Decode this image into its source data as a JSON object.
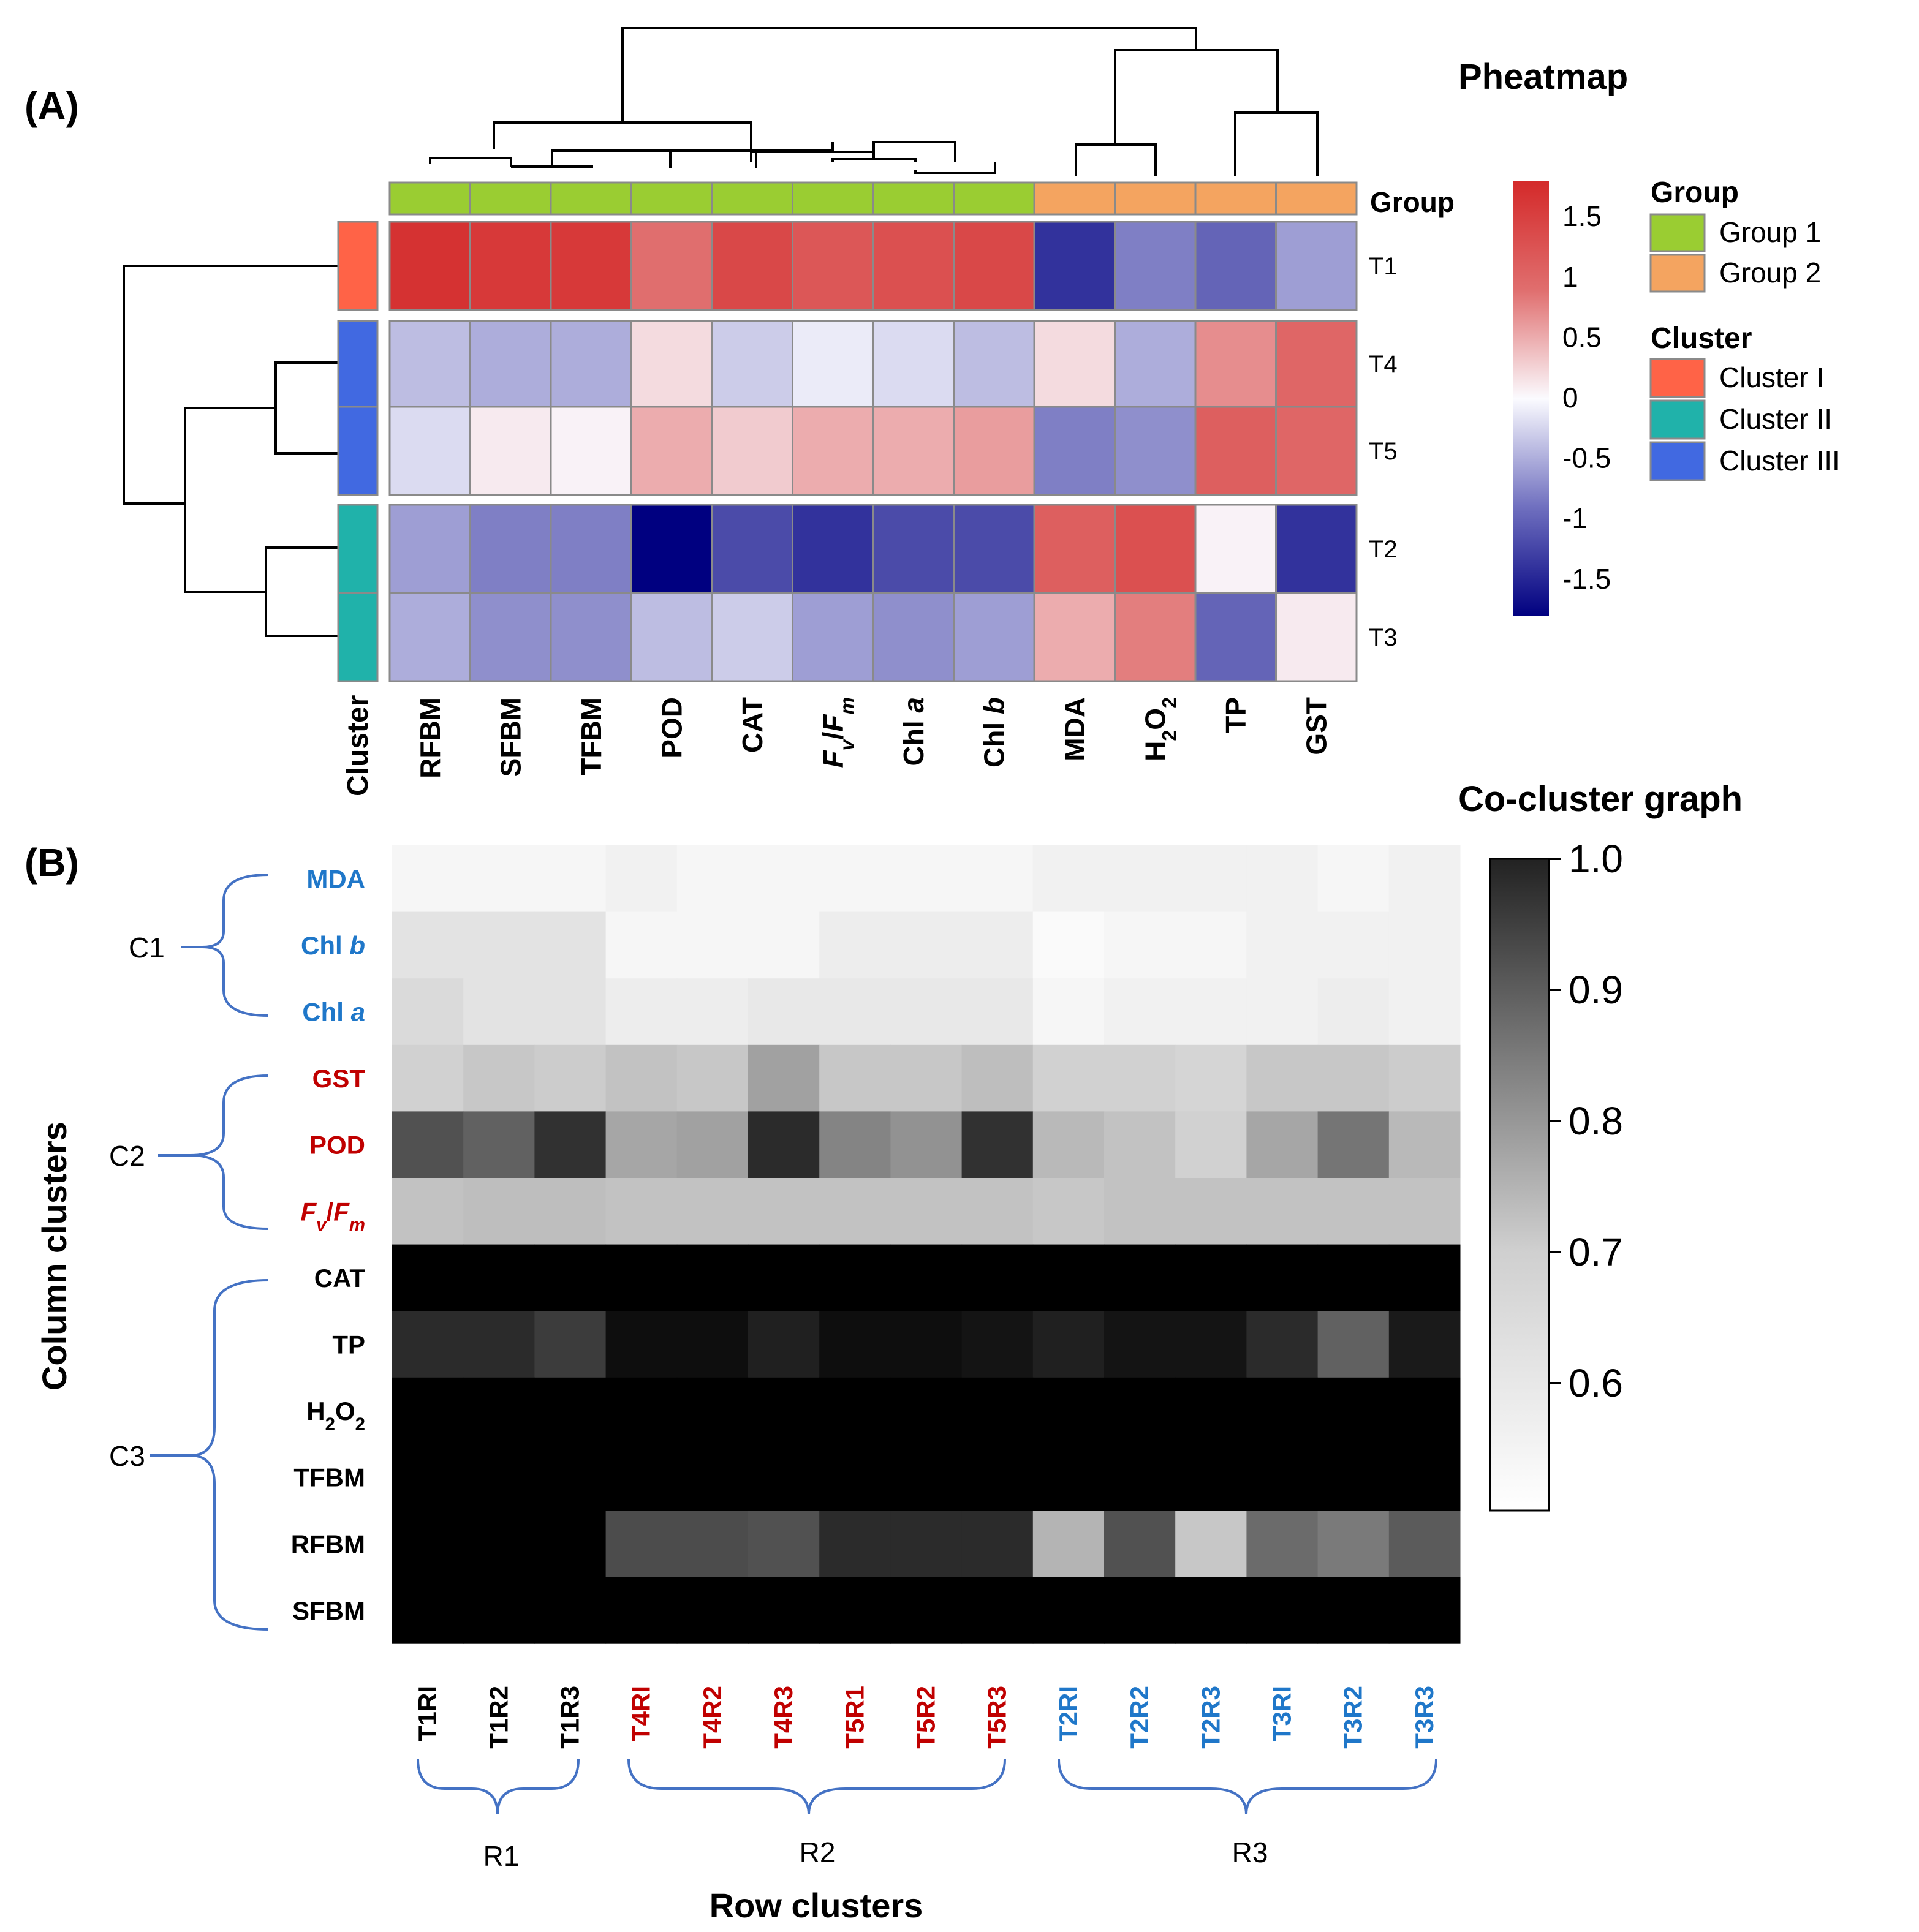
{
  "panel_a": {
    "label": "(A)",
    "title": "Pheatmap",
    "group_header": "Group",
    "cluster_axis_label": "Cluster",
    "legend": {
      "group_title": "Group",
      "group_items": [
        {
          "label": "Group 1",
          "color": "#9acd32"
        },
        {
          "label": "Group 2",
          "color": "#f4a460"
        }
      ],
      "cluster_title": "Cluster",
      "cluster_items": [
        {
          "label": "Cluster I",
          "color": "#ff6347"
        },
        {
          "label": "Cluster II",
          "color": "#20b2aa"
        },
        {
          "label": "Cluster III",
          "color": "#4169e1"
        }
      ]
    },
    "colorbar_ticks": [
      "1.5",
      "1",
      "0.5",
      "0",
      "-0.5",
      "-1",
      "-1.5"
    ]
  },
  "panel_b": {
    "label": "(B)",
    "title": "Co-cluster graph",
    "column_clusters_label": "Column clusters",
    "row_clusters_label": "Row clusters",
    "colorbar_ticks": [
      "1.0",
      "0.9",
      "0.8",
      "0.7",
      "0.6"
    ],
    "column_cluster_labels": [
      "C1",
      "C2",
      "C3"
    ],
    "row_cluster_labels": [
      "R1",
      "R2",
      "R3"
    ]
  },
  "chart_data": [
    {
      "type": "heatmap",
      "title": "Pheatmap",
      "columns": [
        "RFBM",
        "SFBM",
        "TFBM",
        "POD",
        "CAT",
        "Fv/Fm",
        "Chl a",
        "Chl b",
        "MDA",
        "H2O2",
        "TP",
        "GST"
      ],
      "column_groups": [
        "Group 1",
        "Group 1",
        "Group 1",
        "Group 1",
        "Group 1",
        "Group 1",
        "Group 1",
        "Group 1",
        "Group 2",
        "Group 2",
        "Group 2",
        "Group 2"
      ],
      "rows": [
        "T1",
        "T4",
        "T5",
        "T2",
        "T3"
      ],
      "row_clusters": [
        "Cluster I",
        "Cluster III",
        "Cluster III",
        "Cluster II",
        "Cluster II"
      ],
      "values": [
        [
          1.7,
          1.6,
          1.6,
          0.9,
          1.4,
          1.2,
          1.3,
          1.4,
          -1.4,
          -0.8,
          -1.0,
          -0.6
        ],
        [
          -0.4,
          -0.5,
          -0.5,
          0.2,
          -0.3,
          -0.1,
          -0.2,
          -0.4,
          0.2,
          -0.5,
          0.7,
          1.0
        ],
        [
          -0.2,
          0.1,
          0.05,
          0.5,
          0.3,
          0.5,
          0.5,
          0.6,
          -0.8,
          -0.7,
          1.1,
          1.0
        ],
        [
          -0.6,
          -0.8,
          -0.8,
          -1.8,
          -1.2,
          -1.4,
          -1.2,
          -1.2,
          1.1,
          1.3,
          0.05,
          -1.4
        ],
        [
          -0.5,
          -0.7,
          -0.7,
          -0.4,
          -0.3,
          -0.6,
          -0.7,
          -0.6,
          0.5,
          0.8,
          -1.0,
          0.1
        ]
      ],
      "color_range": [
        -1.8,
        1.8
      ],
      "colorbar_ticks": [
        1.5,
        1,
        0.5,
        0,
        -0.5,
        -1,
        -1.5
      ]
    },
    {
      "type": "heatmap",
      "title": "Co-cluster graph",
      "rows": [
        "MDA",
        "Chl b",
        "Chl a",
        "GST",
        "POD",
        "Fv/Fm",
        "CAT",
        "TP",
        "H2O2",
        "TFBM",
        "RFBM",
        "SFBM"
      ],
      "row_colors": [
        "#1f77c9",
        "#1f77c9",
        "#1f77c9",
        "#c00000",
        "#c00000",
        "#c00000",
        "#000000",
        "#000000",
        "#000000",
        "#000000",
        "#000000",
        "#000000"
      ],
      "columns": [
        "T1RI",
        "T1R2",
        "T1R3",
        "T4RI",
        "T4R2",
        "T4R3",
        "T5R1",
        "T5R2",
        "T5R3",
        "T2RI",
        "T2R2",
        "T2R3",
        "T3RI",
        "T3R2",
        "T3R3"
      ],
      "column_colors": [
        "#000000",
        "#000000",
        "#000000",
        "#c00000",
        "#c00000",
        "#c00000",
        "#c00000",
        "#c00000",
        "#c00000",
        "#1f77c9",
        "#1f77c9",
        "#1f77c9",
        "#1f77c9",
        "#1f77c9",
        "#1f77c9"
      ],
      "values": [
        [
          0.52,
          0.52,
          0.52,
          0.53,
          0.52,
          0.52,
          0.52,
          0.52,
          0.52,
          0.53,
          0.53,
          0.53,
          0.53,
          0.52,
          0.53
        ],
        [
          0.56,
          0.56,
          0.56,
          0.52,
          0.52,
          0.52,
          0.54,
          0.54,
          0.54,
          0.51,
          0.52,
          0.52,
          0.53,
          0.53,
          0.53
        ],
        [
          0.58,
          0.56,
          0.56,
          0.54,
          0.54,
          0.55,
          0.55,
          0.55,
          0.55,
          0.52,
          0.53,
          0.53,
          0.53,
          0.54,
          0.53
        ],
        [
          0.6,
          0.62,
          0.61,
          0.63,
          0.62,
          0.7,
          0.62,
          0.62,
          0.64,
          0.6,
          0.6,
          0.59,
          0.62,
          0.62,
          0.61
        ],
        [
          0.86,
          0.83,
          0.92,
          0.69,
          0.7,
          0.93,
          0.76,
          0.73,
          0.92,
          0.65,
          0.63,
          0.6,
          0.69,
          0.79,
          0.65
        ],
        [
          0.63,
          0.64,
          0.64,
          0.63,
          0.63,
          0.63,
          0.63,
          0.63,
          0.63,
          0.62,
          0.63,
          0.63,
          0.63,
          0.63,
          0.63
        ],
        [
          1.0,
          1.0,
          1.0,
          1.0,
          1.0,
          1.0,
          1.0,
          1.0,
          1.0,
          1.0,
          1.0,
          1.0,
          1.0,
          1.0,
          1.0
        ],
        [
          0.93,
          0.93,
          0.9,
          0.98,
          0.98,
          0.95,
          0.98,
          0.98,
          0.97,
          0.95,
          0.97,
          0.97,
          0.93,
          0.83,
          0.96
        ],
        [
          1.0,
          1.0,
          1.0,
          1.0,
          1.0,
          1.0,
          1.0,
          1.0,
          1.0,
          1.0,
          1.0,
          1.0,
          1.0,
          1.0,
          1.0
        ],
        [
          1.0,
          1.0,
          1.0,
          1.0,
          1.0,
          1.0,
          1.0,
          1.0,
          1.0,
          1.0,
          1.0,
          1.0,
          1.0,
          1.0,
          1.0
        ],
        [
          1.0,
          1.0,
          1.0,
          0.87,
          0.87,
          0.86,
          0.93,
          0.93,
          0.93,
          0.66,
          0.86,
          0.62,
          0.81,
          0.78,
          0.84
        ],
        [
          1.0,
          1.0,
          1.0,
          1.0,
          1.0,
          1.0,
          1.0,
          1.0,
          1.0,
          1.0,
          1.0,
          1.0,
          1.0,
          1.0,
          1.0
        ]
      ],
      "color_range": [
        0.5,
        1.0
      ],
      "colorbar_ticks": [
        1.0,
        0.9,
        0.8,
        0.7,
        0.6
      ],
      "column_clusters": [
        {
          "label": "C1",
          "members": [
            "MDA",
            "Chl b",
            "Chl a"
          ]
        },
        {
          "label": "C2",
          "members": [
            "GST",
            "POD",
            "Fv/Fm"
          ]
        },
        {
          "label": "C3",
          "members": [
            "CAT",
            "TP",
            "H2O2",
            "TFBM",
            "RFBM",
            "SFBM"
          ]
        }
      ],
      "row_clusters": [
        {
          "label": "R1",
          "members": [
            "T1RI",
            "T1R2",
            "T1R3"
          ]
        },
        {
          "label": "R2",
          "members": [
            "T4RI",
            "T4R2",
            "T4R3",
            "T5R1",
            "T5R2",
            "T5R3"
          ]
        },
        {
          "label": "R3",
          "members": [
            "T2RI",
            "T2R2",
            "T2R3",
            "T3RI",
            "T3R2",
            "T3R3"
          ]
        }
      ]
    }
  ]
}
